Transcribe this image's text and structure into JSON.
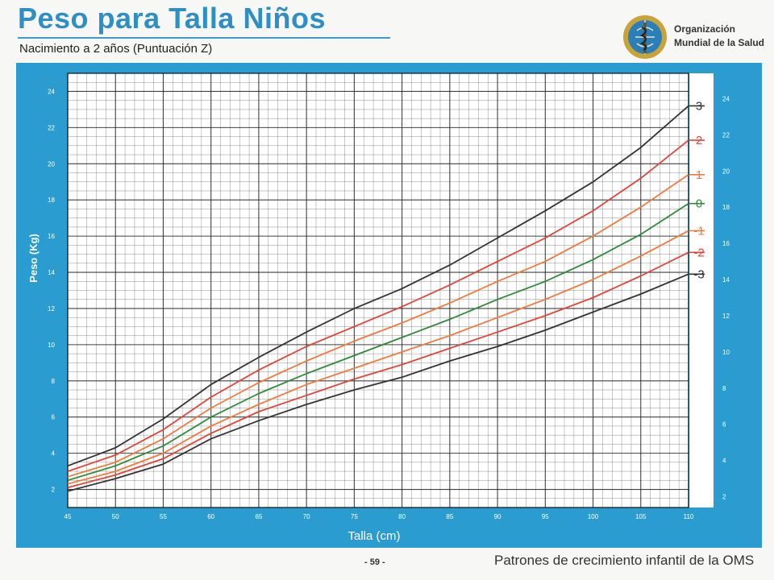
{
  "header": {
    "title": "Peso para Talla Niños",
    "subtitle": "Nacimiento a 2 años (Puntuación Z)",
    "org_line1": "Organización",
    "org_line2": "Mundial de la Salud"
  },
  "footer": {
    "page": "- 59 -",
    "text": "Patrones de crecimiento infantil de la OMS"
  },
  "colors": {
    "panel": "#2b9cd0",
    "plot_bg": "#ffffff",
    "grid": "#222222",
    "z3": "#333333",
    "z2": "#e0453a",
    "z1": "#f07a3e",
    "z0": "#2e8b3a",
    "zm1": "#f07a3e",
    "zm2": "#e0453a",
    "zm3": "#333333"
  },
  "chart_data": {
    "type": "line",
    "title": "Peso para Talla Niños",
    "subtitle": "Nacimiento a 2 años (Puntuación Z)",
    "xlabel": "Talla (cm)",
    "ylabel": "Peso (Kg)",
    "xlim": [
      45,
      110
    ],
    "ylim": [
      1,
      25
    ],
    "x_ticks": [
      45,
      50,
      55,
      60,
      65,
      70,
      75,
      80,
      85,
      90,
      95,
      100,
      105,
      110
    ],
    "y_ticks": [
      2,
      4,
      6,
      8,
      10,
      12,
      14,
      16,
      18,
      20,
      22,
      24
    ],
    "grid": true,
    "x": [
      45,
      50,
      55,
      60,
      65,
      70,
      75,
      80,
      85,
      90,
      95,
      100,
      105,
      110
    ],
    "series": [
      {
        "name": "3",
        "color_key": "z3",
        "values": [
          3.3,
          4.3,
          5.9,
          7.8,
          9.3,
          10.7,
          12.0,
          13.1,
          14.4,
          15.9,
          17.4,
          19.0,
          20.9,
          23.2
        ]
      },
      {
        "name": "2",
        "color_key": "z2",
        "values": [
          3.0,
          3.9,
          5.3,
          7.1,
          8.6,
          9.9,
          11.0,
          12.1,
          13.3,
          14.6,
          15.9,
          17.4,
          19.2,
          21.3
        ]
      },
      {
        "name": "1",
        "color_key": "z1",
        "values": [
          2.7,
          3.5,
          4.8,
          6.5,
          7.9,
          9.1,
          10.2,
          11.2,
          12.3,
          13.5,
          14.6,
          16.0,
          17.6,
          19.4
        ]
      },
      {
        "name": "0",
        "color_key": "z0",
        "values": [
          2.5,
          3.3,
          4.4,
          6.0,
          7.3,
          8.4,
          9.4,
          10.4,
          11.4,
          12.5,
          13.5,
          14.7,
          16.1,
          17.8
        ]
      },
      {
        "name": "-1",
        "color_key": "zm1",
        "values": [
          2.3,
          3.0,
          4.0,
          5.5,
          6.7,
          7.8,
          8.7,
          9.6,
          10.5,
          11.5,
          12.5,
          13.6,
          14.9,
          16.3
        ]
      },
      {
        "name": "-2",
        "color_key": "zm2",
        "values": [
          2.1,
          2.8,
          3.7,
          5.1,
          6.3,
          7.2,
          8.1,
          8.9,
          9.8,
          10.7,
          11.6,
          12.6,
          13.8,
          15.1
        ]
      },
      {
        "name": "-3",
        "color_key": "zm3",
        "values": [
          1.9,
          2.6,
          3.4,
          4.8,
          5.8,
          6.7,
          7.5,
          8.2,
          9.1,
          9.9,
          10.8,
          11.8,
          12.8,
          13.9
        ]
      }
    ]
  }
}
